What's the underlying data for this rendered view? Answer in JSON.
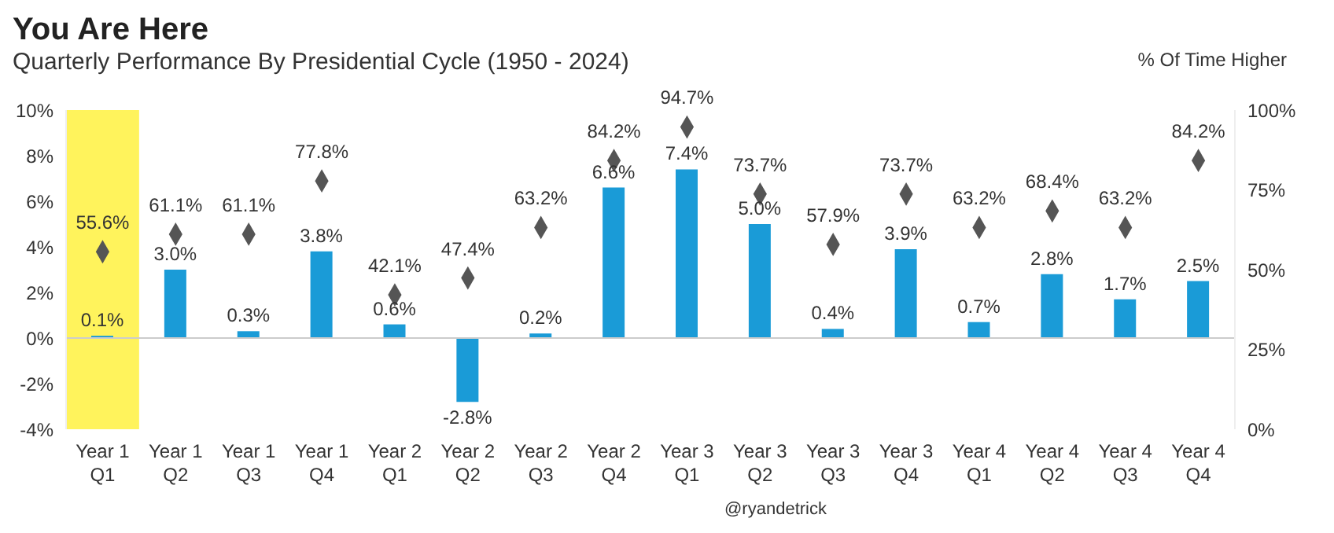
{
  "chart_data": {
    "type": "bar",
    "title": "You Are Here",
    "subtitle": "Quarterly Performance By Presidential Cycle (1950 - 2024)",
    "y2label": "% Of Time Higher",
    "categories": [
      "Year 1 Q1",
      "Year 1 Q2",
      "Year 1 Q3",
      "Year 1 Q4",
      "Year 2 Q1",
      "Year 2 Q2",
      "Year 2 Q3",
      "Year 2 Q4",
      "Year 3 Q1",
      "Year 3 Q2",
      "Year 3 Q3",
      "Year 3 Q4",
      "Year 4 Q1",
      "Year 4 Q2",
      "Year 4 Q3",
      "Year 4 Q4"
    ],
    "series": [
      {
        "color": "#1a9bd7",
        "values": [
          0.1,
          3.0,
          0.3,
          3.8,
          0.6,
          -2.8,
          0.2,
          6.6,
          7.4,
          5.0,
          0.4,
          3.9,
          0.7,
          2.8,
          1.7,
          2.5
        ],
        "value_labels": [
          "0.1%",
          "3.0%",
          "0.3%",
          "3.8%",
          "0.6%",
          "-2.8%",
          "0.2%",
          "6.6%",
          "7.4%",
          "5.0%",
          "0.4%",
          "3.9%",
          "0.7%",
          "2.8%",
          "1.7%",
          "2.5%"
        ]
      },
      {
        "type": "scatter",
        "axis": "y2",
        "color": "#555555",
        "marker": "diamond",
        "values": [
          55.6,
          61.1,
          61.1,
          77.8,
          42.1,
          47.4,
          63.2,
          84.2,
          94.7,
          73.7,
          57.9,
          73.7,
          63.2,
          68.4,
          63.2,
          84.2
        ],
        "value_labels": [
          "55.6%",
          "61.1%",
          "61.1%",
          "77.8%",
          "42.1%",
          "47.4%",
          "63.2%",
          "84.2%",
          "94.7%",
          "73.7%",
          "57.9%",
          "73.7%",
          "63.2%",
          "68.4%",
          "63.2%",
          "84.2%"
        ]
      }
    ],
    "ylim": [
      -4,
      10
    ],
    "yticks": [
      {
        "value": -4,
        "label": "-4%"
      },
      {
        "value": -2,
        "label": "-2%"
      },
      {
        "value": 0,
        "label": "0%"
      },
      {
        "value": 2,
        "label": "2%"
      },
      {
        "value": 4,
        "label": "4%"
      },
      {
        "value": 6,
        "label": "6%"
      },
      {
        "value": 8,
        "label": "8%"
      },
      {
        "value": 10,
        "label": "10%"
      }
    ],
    "y2lim": [
      0,
      100
    ],
    "y2ticks": [
      {
        "value": 0,
        "label": "0%"
      },
      {
        "value": 25,
        "label": "25%"
      },
      {
        "value": 50,
        "label": "50%"
      },
      {
        "value": 75,
        "label": "75%"
      },
      {
        "value": 100,
        "label": "100%"
      }
    ],
    "bands": [
      {
        "axis": "x",
        "from": "Year 1 Q1",
        "to": "Year 1 Q1",
        "color": "#fff35c"
      }
    ],
    "ref_lines": [
      {
        "axis": "y",
        "value": 0,
        "color": "#cccccc"
      }
    ],
    "annotations": [
      "@ryandetrick"
    ],
    "grid": false
  }
}
